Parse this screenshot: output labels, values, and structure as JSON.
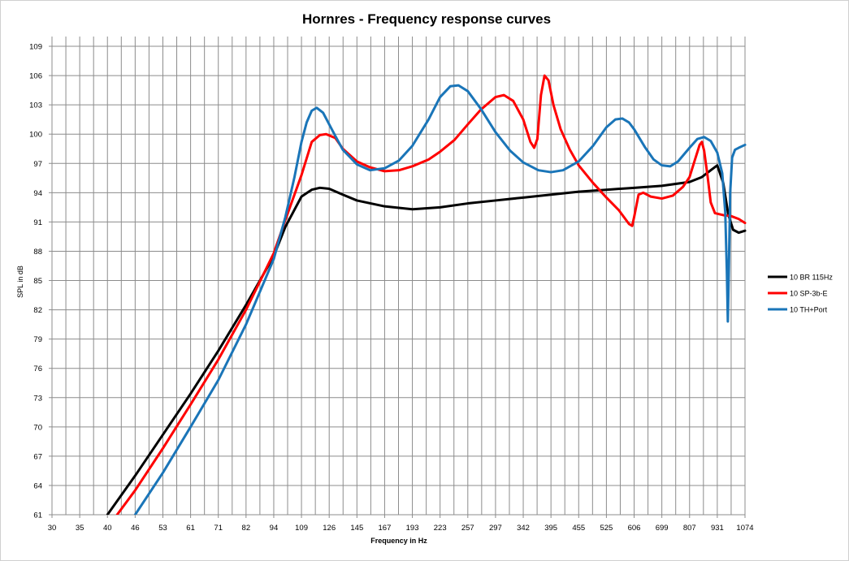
{
  "chart_data": {
    "type": "line",
    "title": "Hornres - Frequency response curves",
    "xlabel": "Frequency in Hz",
    "ylabel": "SPL in dB",
    "x_scale": "log",
    "xlim": [
      30,
      1074
    ],
    "ylim": [
      61,
      110
    ],
    "grid": true,
    "legend_position": "right",
    "x_ticks": [
      30,
      35,
      40,
      46,
      53,
      61,
      71,
      82,
      94,
      109,
      126,
      145,
      167,
      193,
      223,
      257,
      297,
      342,
      395,
      455,
      525,
      606,
      699,
      807,
      931,
      1074
    ],
    "y_ticks": [
      61,
      64,
      67,
      70,
      73,
      76,
      79,
      82,
      85,
      88,
      91,
      94,
      97,
      100,
      103,
      106,
      109
    ],
    "series": [
      {
        "name": "10 BR 115Hz",
        "color": "#000000",
        "points": [
          [
            40,
            61
          ],
          [
            46,
            65
          ],
          [
            53,
            69.2
          ],
          [
            61,
            73.4
          ],
          [
            71,
            77.8
          ],
          [
            82,
            82.5
          ],
          [
            94,
            87.5
          ],
          [
            100,
            90.5
          ],
          [
            109,
            93.6
          ],
          [
            115,
            94.3
          ],
          [
            120,
            94.5
          ],
          [
            126,
            94.4
          ],
          [
            135,
            93.8
          ],
          [
            145,
            93.2
          ],
          [
            167,
            92.6
          ],
          [
            193,
            92.3
          ],
          [
            223,
            92.5
          ],
          [
            257,
            92.9
          ],
          [
            297,
            93.2
          ],
          [
            342,
            93.5
          ],
          [
            395,
            93.8
          ],
          [
            455,
            94.1
          ],
          [
            525,
            94.3
          ],
          [
            606,
            94.5
          ],
          [
            699,
            94.7
          ],
          [
            807,
            95.1
          ],
          [
            860,
            95.6
          ],
          [
            900,
            96.3
          ],
          [
            931,
            96.8
          ],
          [
            960,
            95
          ],
          [
            985,
            91.8
          ],
          [
            1010,
            90.2
          ],
          [
            1040,
            89.9
          ],
          [
            1074,
            90.1
          ]
        ]
      },
      {
        "name": "10 SP-3b-E",
        "color": "#ff0000",
        "points": [
          [
            42,
            61
          ],
          [
            46,
            63.5
          ],
          [
            53,
            67.8
          ],
          [
            61,
            72.3
          ],
          [
            71,
            76.9
          ],
          [
            82,
            82
          ],
          [
            94,
            87.8
          ],
          [
            100,
            91.2
          ],
          [
            109,
            95.8
          ],
          [
            115,
            99.2
          ],
          [
            120,
            99.9
          ],
          [
            124,
            100
          ],
          [
            130,
            99.6
          ],
          [
            135,
            98.5
          ],
          [
            145,
            97.2
          ],
          [
            155,
            96.6
          ],
          [
            167,
            96.2
          ],
          [
            180,
            96.3
          ],
          [
            193,
            96.7
          ],
          [
            210,
            97.4
          ],
          [
            223,
            98.2
          ],
          [
            240,
            99.4
          ],
          [
            257,
            101
          ],
          [
            275,
            102.5
          ],
          [
            297,
            103.8
          ],
          [
            310,
            104
          ],
          [
            325,
            103.4
          ],
          [
            342,
            101.5
          ],
          [
            355,
            99.2
          ],
          [
            362,
            98.6
          ],
          [
            368,
            99.5
          ],
          [
            375,
            104
          ],
          [
            382,
            106
          ],
          [
            390,
            105.5
          ],
          [
            400,
            103
          ],
          [
            415,
            100.5
          ],
          [
            435,
            98.4
          ],
          [
            455,
            96.8
          ],
          [
            490,
            95
          ],
          [
            525,
            93.5
          ],
          [
            560,
            92.2
          ],
          [
            590,
            90.8
          ],
          [
            600,
            90.6
          ],
          [
            606,
            91.5
          ],
          [
            620,
            93.8
          ],
          [
            635,
            94
          ],
          [
            660,
            93.6
          ],
          [
            699,
            93.4
          ],
          [
            740,
            93.7
          ],
          [
            780,
            94.6
          ],
          [
            807,
            95.6
          ],
          [
            830,
            97.4
          ],
          [
            850,
            98.9
          ],
          [
            860,
            99.2
          ],
          [
            870,
            98.3
          ],
          [
            885,
            95.8
          ],
          [
            900,
            93
          ],
          [
            920,
            91.9
          ],
          [
            960,
            91.7
          ],
          [
            1000,
            91.6
          ],
          [
            1040,
            91.3
          ],
          [
            1074,
            90.9
          ]
        ]
      },
      {
        "name": "10 TH+Port",
        "color": "#1a75b8",
        "points": [
          [
            46,
            61
          ],
          [
            53,
            65.3
          ],
          [
            61,
            70
          ],
          [
            71,
            74.8
          ],
          [
            82,
            80.5
          ],
          [
            94,
            87.2
          ],
          [
            100,
            91.5
          ],
          [
            105,
            95.6
          ],
          [
            109,
            99.2
          ],
          [
            112,
            101.2
          ],
          [
            115,
            102.4
          ],
          [
            118,
            102.7
          ],
          [
            122,
            102.2
          ],
          [
            126,
            101
          ],
          [
            130,
            99.8
          ],
          [
            135,
            98.4
          ],
          [
            145,
            96.9
          ],
          [
            155,
            96.3
          ],
          [
            167,
            96.5
          ],
          [
            180,
            97.3
          ],
          [
            193,
            98.8
          ],
          [
            210,
            101.5
          ],
          [
            223,
            103.8
          ],
          [
            235,
            104.9
          ],
          [
            245,
            105
          ],
          [
            257,
            104.4
          ],
          [
            275,
            102.6
          ],
          [
            297,
            100.2
          ],
          [
            320,
            98.3
          ],
          [
            342,
            97.1
          ],
          [
            370,
            96.3
          ],
          [
            395,
            96.1
          ],
          [
            420,
            96.3
          ],
          [
            455,
            97.2
          ],
          [
            490,
            98.8
          ],
          [
            525,
            100.7
          ],
          [
            550,
            101.5
          ],
          [
            570,
            101.6
          ],
          [
            590,
            101.2
          ],
          [
            606,
            100.5
          ],
          [
            640,
            98.7
          ],
          [
            670,
            97.4
          ],
          [
            699,
            96.8
          ],
          [
            730,
            96.7
          ],
          [
            760,
            97.2
          ],
          [
            807,
            98.6
          ],
          [
            840,
            99.5
          ],
          [
            870,
            99.7
          ],
          [
            900,
            99.3
          ],
          [
            931,
            98.1
          ],
          [
            955,
            96
          ],
          [
            970,
            92
          ],
          [
            978,
            86
          ],
          [
            983,
            80.8
          ],
          [
            988,
            86
          ],
          [
            995,
            94
          ],
          [
            1005,
            97.6
          ],
          [
            1020,
            98.4
          ],
          [
            1040,
            98.6
          ],
          [
            1074,
            98.9
          ]
        ]
      }
    ]
  }
}
